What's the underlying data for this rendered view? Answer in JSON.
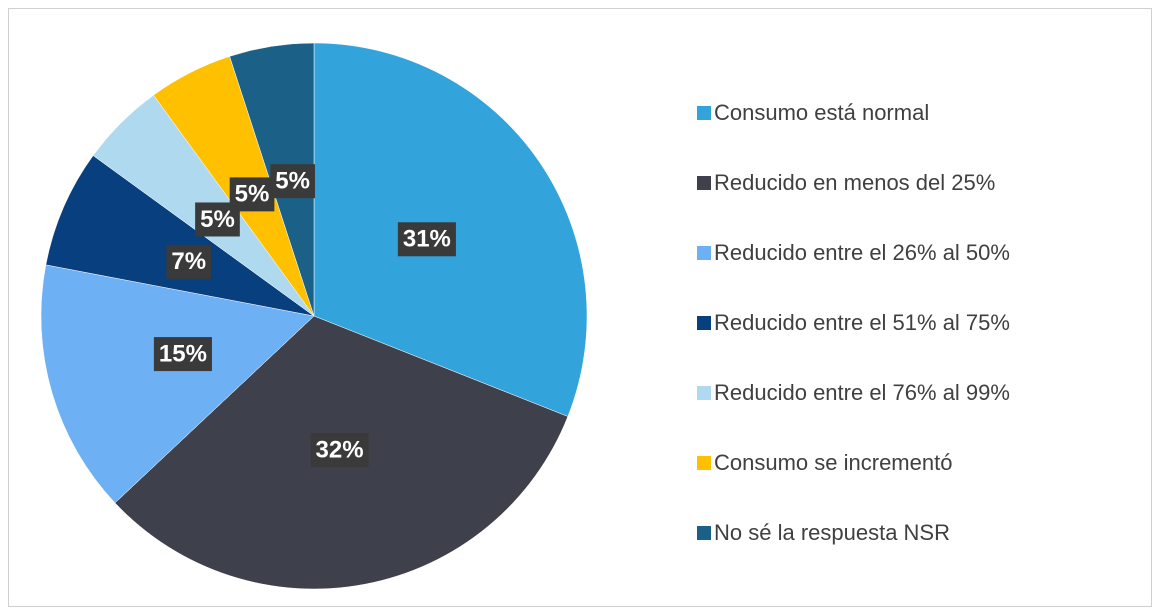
{
  "chart_data": {
    "type": "pie",
    "categories": [
      "Consumo está normal",
      "Reducido en menos del 25%",
      "Reducido entre el 26% al 50%",
      "Reducido entre el 51% al 75%",
      "Reducido entre el 76% al 99%",
      "Consumo se incrementó",
      "No sé la respuesta NSR"
    ],
    "values": [
      31,
      32,
      15,
      7,
      5,
      5,
      5
    ],
    "value_labels": [
      "31%",
      "32%",
      "15%",
      "7%",
      "5%",
      "5%",
      "5%"
    ],
    "colors": [
      "#33a3dc",
      "#3e414c",
      "#6db0f3",
      "#083f7e",
      "#aed9ef",
      "#ffc000",
      "#1b6086"
    ],
    "legend": "right"
  }
}
